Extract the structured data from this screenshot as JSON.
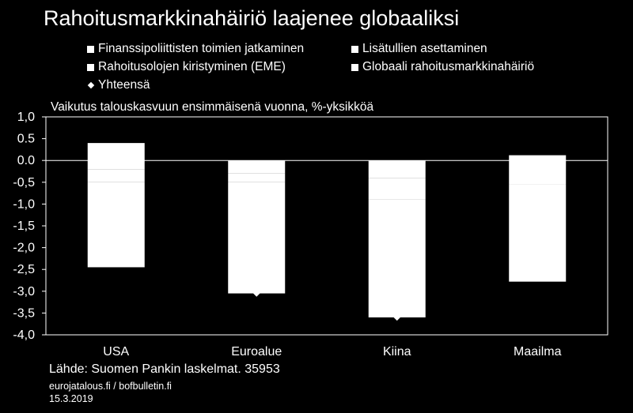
{
  "chart_data": {
    "type": "bar",
    "title": "Rahoitusmarkkinahäiriö laajenee globaaliksi",
    "subtitle": "Vaikutus talouskasvuun ensimmäisenä vuonna, %-yksikköä",
    "categories": [
      "USA",
      "Euroalue",
      "Kiina",
      "Maailma"
    ],
    "series": [
      {
        "name": "Finanssipoliittisten toimien jatkaminen",
        "values": [
          0.4,
          0.0,
          0.0,
          0.12
        ],
        "marker": "square"
      },
      {
        "name": "Lisätullien asettaminen",
        "values": [
          -0.2,
          -0.3,
          -0.4,
          -0.25
        ],
        "marker": "square"
      },
      {
        "name": "Rahoitusolojen kiristyminen (EME)",
        "values": [
          -0.3,
          -0.2,
          -0.5,
          -0.3
        ],
        "marker": "square"
      },
      {
        "name": "Globaali rahoitusmarkkinahäiriö",
        "values": [
          -1.95,
          -2.55,
          -2.7,
          -2.23
        ],
        "marker": "square"
      },
      {
        "name": "Yhteensä",
        "values": [
          -2.05,
          -3.05,
          -3.6,
          -2.66
        ],
        "marker": "diamond"
      }
    ],
    "ylim": [
      -4.0,
      1.0
    ],
    "yticks": [
      "1,0",
      "0.5",
      "0.0",
      "-0,5",
      "-1,0",
      "-1,5",
      "-2,0",
      "-2,5",
      "-3,0",
      "-3,5",
      "-4,0"
    ],
    "xlabel": "",
    "ylabel": "",
    "grid": false,
    "colors": {
      "bars": "#ffffff",
      "background": "#000000",
      "axis": "#ffffff"
    }
  },
  "footer": {
    "source": "Lähde: Suomen Pankin laskelmat. 35953",
    "site": "eurojatalous.fi / bofbulletin.fi",
    "date": "15.3.2019"
  }
}
